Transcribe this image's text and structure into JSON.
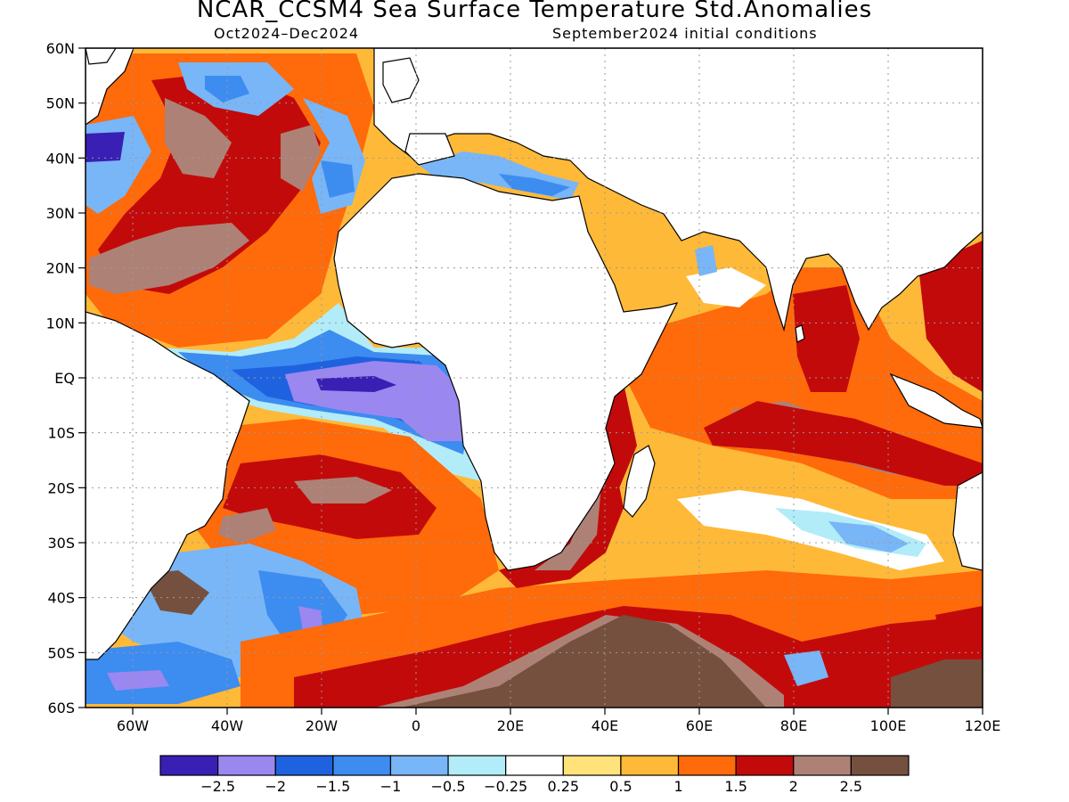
{
  "header": {
    "title": "NCAR_CCSM4 Sea Surface Temperature Std.Anomalies",
    "period": "Oct2024–Dec2024",
    "init": "September2024 initial conditions"
  },
  "axes": {
    "lat_labels": [
      "60N",
      "50N",
      "40N",
      "30N",
      "20N",
      "10N",
      "EQ",
      "10S",
      "20S",
      "30S",
      "40S",
      "50S",
      "60S"
    ],
    "lon_labels": [
      "60W",
      "40W",
      "20W",
      "0",
      "20E",
      "40E",
      "60E",
      "80E",
      "100E",
      "120E"
    ],
    "lon_values": [
      -60,
      -40,
      -20,
      0,
      20,
      40,
      60,
      80,
      100,
      120
    ],
    "lat_values": [
      60,
      50,
      40,
      30,
      20,
      10,
      0,
      -10,
      -20,
      -30,
      -40,
      -50,
      -60
    ],
    "lon_range": [
      -70,
      120
    ],
    "lat_range": [
      -60,
      60
    ]
  },
  "colorbar": {
    "labels": [
      "−2.5",
      "−2",
      "−1.5",
      "−1",
      "−0.5",
      "−0.25",
      "0.25",
      "0.5",
      "1",
      "1.5",
      "2",
      "2.5"
    ],
    "colors": [
      "#3a1fb4",
      "#9b87f0",
      "#1f62e0",
      "#3d8cf0",
      "#78b6f7",
      "#b2ecf8",
      "#ffffff",
      "#ffe27a",
      "#ffb938",
      "#ff6a0a",
      "#c30a0a",
      "#ae8176",
      "#75503e"
    ]
  },
  "colors": {
    "land": "#ffffff",
    "coast": "#000000",
    "grid": "#9a9a9a"
  },
  "map": {
    "background_anomaly_color": "#ffb938"
  }
}
